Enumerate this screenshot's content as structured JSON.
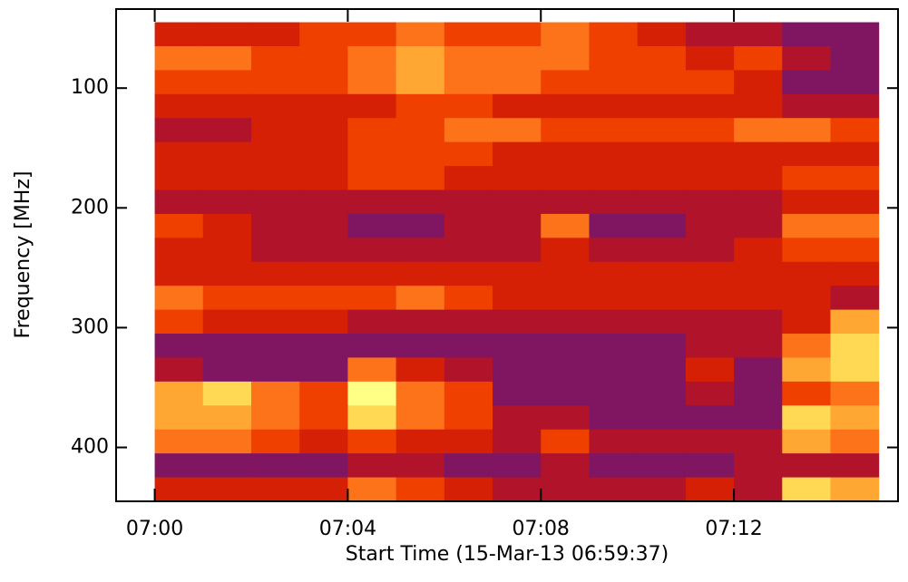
{
  "chart_data": {
    "type": "heatmap",
    "x_label": "Start Time (15-Mar-13 06:59:37)",
    "y_label": "Frequency [MHz]",
    "x": [
      420,
      421,
      422,
      423,
      424,
      425,
      426,
      427,
      428,
      429,
      430,
      431,
      432,
      433,
      434,
      435
    ],
    "y": [
      45,
      65,
      85,
      105,
      125,
      145,
      165,
      185,
      205,
      225,
      245,
      265,
      285,
      305,
      325,
      345,
      365,
      385,
      405,
      425,
      445
    ],
    "values": [
      [
        4,
        4,
        4,
        5,
        5,
        6,
        5,
        5,
        6,
        5,
        4,
        3,
        3,
        2,
        2
      ],
      [
        6,
        6,
        5,
        5,
        6,
        7,
        6,
        6,
        6,
        5,
        5,
        4,
        5,
        3,
        2
      ],
      [
        5,
        5,
        5,
        5,
        6,
        7,
        6,
        6,
        5,
        5,
        5,
        5,
        4,
        2,
        2
      ],
      [
        4,
        4,
        4,
        4,
        4,
        5,
        5,
        4,
        4,
        4,
        4,
        4,
        4,
        3,
        3
      ],
      [
        3,
        3,
        4,
        4,
        5,
        5,
        6,
        6,
        5,
        5,
        5,
        5,
        6,
        6,
        5
      ],
      [
        4,
        4,
        4,
        4,
        5,
        5,
        5,
        4,
        4,
        4,
        4,
        4,
        4,
        4,
        4
      ],
      [
        4,
        4,
        4,
        4,
        5,
        5,
        4,
        4,
        4,
        4,
        4,
        4,
        4,
        5,
        5
      ],
      [
        3,
        3,
        3,
        3,
        3,
        3,
        3,
        3,
        3,
        3,
        3,
        3,
        3,
        4,
        4
      ],
      [
        5,
        4,
        3,
        3,
        2,
        2,
        3,
        3,
        6,
        2,
        2,
        3,
        3,
        6,
        6
      ],
      [
        4,
        4,
        3,
        3,
        3,
        3,
        3,
        3,
        4,
        3,
        3,
        3,
        4,
        5,
        5
      ],
      [
        4,
        4,
        4,
        4,
        4,
        4,
        4,
        4,
        4,
        4,
        4,
        4,
        4,
        4,
        4
      ],
      [
        6,
        5,
        5,
        5,
        5,
        6,
        5,
        4,
        4,
        4,
        4,
        4,
        4,
        4,
        3
      ],
      [
        5,
        4,
        4,
        4,
        3,
        3,
        3,
        3,
        3,
        3,
        3,
        3,
        3,
        4,
        7
      ],
      [
        2,
        2,
        2,
        2,
        2,
        2,
        2,
        2,
        2,
        2,
        2,
        3,
        3,
        6,
        8
      ],
      [
        3,
        2,
        2,
        2,
        6,
        4,
        3,
        2,
        2,
        2,
        2,
        4,
        2,
        7,
        8
      ],
      [
        7,
        8,
        6,
        5,
        9,
        6,
        5,
        2,
        2,
        2,
        2,
        3,
        2,
        5,
        6
      ],
      [
        7,
        7,
        6,
        5,
        8,
        6,
        5,
        3,
        3,
        2,
        2,
        2,
        2,
        8,
        7
      ],
      [
        6,
        6,
        5,
        4,
        5,
        4,
        4,
        3,
        5,
        3,
        3,
        3,
        3,
        7,
        6
      ],
      [
        2,
        2,
        2,
        2,
        3,
        3,
        2,
        2,
        3,
        2,
        2,
        2,
        3,
        3,
        3
      ],
      [
        4,
        4,
        4,
        4,
        6,
        5,
        4,
        3,
        3,
        3,
        3,
        4,
        3,
        8,
        7
      ]
    ],
    "zlim": [
      0,
      10
    ],
    "colorscale": [
      "#2a22b0",
      "#5a1c96",
      "#9a1040",
      "#d01808",
      "#f04000",
      "#ff8020",
      "#ffc040",
      "#ffff70",
      "#ffffd8"
    ],
    "xlim": [
      419.2,
      435.4
    ],
    "xticks": [
      {
        "value": 420,
        "label": "07:00"
      },
      {
        "value": 424,
        "label": "07:04"
      },
      {
        "value": 428,
        "label": "07:08"
      },
      {
        "value": 432,
        "label": "07:12"
      }
    ],
    "ylim": [
      34,
      445
    ],
    "yticks": [
      100,
      200,
      300,
      400
    ],
    "y_reversed": true
  }
}
